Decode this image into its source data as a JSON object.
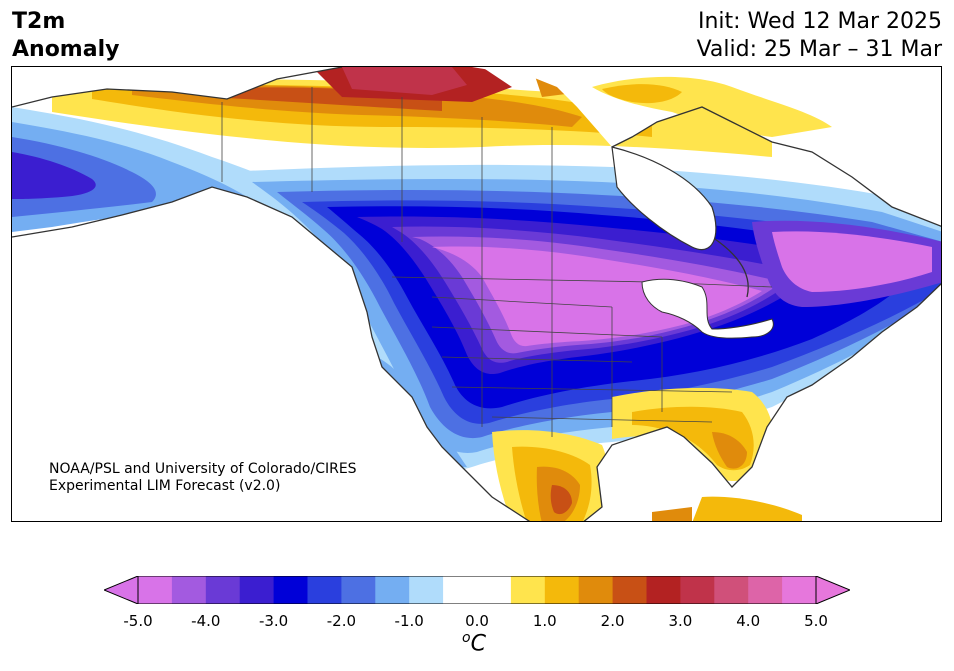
{
  "header": {
    "title_line1": "T2m",
    "title_line2": "Anomaly",
    "init_text": "Init: Wed 12 Mar 2025",
    "valid_text": "Valid: 25 Mar – 31 Mar"
  },
  "credit": {
    "line1": "NOAA/PSL and University of Colorado/CIRES",
    "line2": "Experimental LIM Forecast (v2.0)"
  },
  "colorbar": {
    "unit_base": "o",
    "unit_letter": "C",
    "tick_labels": [
      "-5.0",
      "-4.0",
      "-3.0",
      "-2.0",
      "-1.0",
      "0.0",
      "1.0",
      "2.0",
      "3.0",
      "4.0",
      "5.0"
    ],
    "colors": [
      "#d873e8",
      "#a35ae0",
      "#6a3ad6",
      "#3b1ed0",
      "#0000d8",
      "#2a3fde",
      "#4d70e3",
      "#74aef2",
      "#b0dcfb",
      "#ffffff",
      "#ffffff",
      "#ffe44d",
      "#f4b90b",
      "#e08b0c",
      "#c85015",
      "#b32222",
      "#c0334a",
      "#d0507a",
      "#dd64a8",
      "#e677dc"
    ],
    "under_color": "#d873e8",
    "over_color": "#e677dc"
  },
  "map": {
    "region": "North America",
    "variable": "2-meter temperature anomaly"
  }
}
